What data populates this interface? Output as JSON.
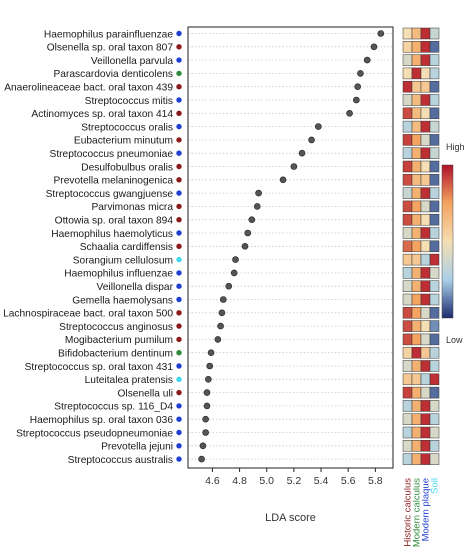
{
  "chart_data": {
    "type": "scatter",
    "orientation": "horizontal",
    "xlabel": "LDA score",
    "xlim": [
      4.42,
      5.93
    ],
    "xticks": [
      4.6,
      4.8,
      5.0,
      5.2,
      5.4,
      5.6,
      5.8
    ],
    "grid": "horizontal dotted",
    "point_color": "#555555",
    "taxa": [
      {
        "name": "Haemophilus parainfluenzae",
        "lda": 5.84,
        "group": "Modern plaque",
        "heat": [
          0.5,
          0.65,
          0.95,
          0.35
        ]
      },
      {
        "name": "Olsenella sp. oral taxon 807",
        "lda": 5.79,
        "group": "Historic calculus",
        "heat": [
          0.55,
          0.7,
          0.95,
          0.1
        ]
      },
      {
        "name": "Veillonella parvula",
        "lda": 5.74,
        "group": "Modern plaque",
        "heat": [
          0.4,
          0.7,
          0.95,
          0.3
        ]
      },
      {
        "name": "Parascardovia denticolens",
        "lda": 5.69,
        "group": "Modern calculus",
        "heat": [
          0.5,
          0.95,
          0.5,
          0.3
        ]
      },
      {
        "name": "Anaerolineaceae bact. oral taxon 439",
        "lda": 5.67,
        "group": "Historic calculus",
        "heat": [
          0.95,
          0.6,
          0.6,
          0.1
        ]
      },
      {
        "name": "Streptococcus mitis",
        "lda": 5.66,
        "group": "Modern plaque",
        "heat": [
          0.4,
          0.65,
          0.95,
          0.3
        ]
      },
      {
        "name": "Actinomyces sp. oral taxon 414",
        "lda": 5.61,
        "group": "Historic calculus",
        "heat": [
          0.9,
          0.65,
          0.5,
          0.1
        ]
      },
      {
        "name": "Streptococcus oralis",
        "lda": 5.38,
        "group": "Modern plaque",
        "heat": [
          0.3,
          0.65,
          0.95,
          0.35
        ]
      },
      {
        "name": "Eubacterium minutum",
        "lda": 5.33,
        "group": "Historic calculus",
        "heat": [
          0.92,
          0.75,
          0.4,
          0.1
        ]
      },
      {
        "name": "Streptococcus pneumoniae",
        "lda": 5.26,
        "group": "Modern plaque",
        "heat": [
          0.3,
          0.7,
          0.95,
          0.35
        ]
      },
      {
        "name": "Desulfobulbus oralis",
        "lda": 5.2,
        "group": "Historic calculus",
        "heat": [
          0.92,
          0.7,
          0.5,
          0.1
        ]
      },
      {
        "name": "Prevotella melaninogenica",
        "lda": 5.12,
        "group": "Historic calculus",
        "heat": [
          0.9,
          0.65,
          0.6,
          0.1
        ]
      },
      {
        "name": "Streptococcus gwangjuense",
        "lda": 4.94,
        "group": "Modern plaque",
        "heat": [
          0.35,
          0.7,
          0.95,
          0.3
        ]
      },
      {
        "name": "Parvimonas micra",
        "lda": 4.93,
        "group": "Historic calculus",
        "heat": [
          0.9,
          0.75,
          0.4,
          0.1
        ]
      },
      {
        "name": "Ottowia sp. oral taxon 894",
        "lda": 4.89,
        "group": "Historic calculus",
        "heat": [
          0.9,
          0.7,
          0.5,
          0.1
        ]
      },
      {
        "name": "Haemophilus haemolyticus",
        "lda": 4.86,
        "group": "Modern plaque",
        "heat": [
          0.4,
          0.7,
          0.95,
          0.3
        ]
      },
      {
        "name": "Schaalia cardiffensis",
        "lda": 4.84,
        "group": "Historic calculus",
        "heat": [
          0.85,
          0.75,
          0.5,
          0.1
        ]
      },
      {
        "name": "Sorangium cellulosum",
        "lda": 4.77,
        "group": "Soil",
        "heat": [
          0.6,
          0.6,
          0.3,
          0.95
        ]
      },
      {
        "name": "Haemophilus influenzae",
        "lda": 4.76,
        "group": "Modern plaque",
        "heat": [
          0.3,
          0.7,
          0.95,
          0.4
        ]
      },
      {
        "name": "Veillonella dispar",
        "lda": 4.72,
        "group": "Modern plaque",
        "heat": [
          0.4,
          0.7,
          0.95,
          0.3
        ]
      },
      {
        "name": "Gemella haemolysans",
        "lda": 4.68,
        "group": "Modern plaque",
        "heat": [
          0.4,
          0.75,
          0.95,
          0.3
        ]
      },
      {
        "name": "Lachnospiraceae bact. oral taxon 500",
        "lda": 4.67,
        "group": "Historic calculus",
        "heat": [
          0.9,
          0.75,
          0.4,
          0.1
        ]
      },
      {
        "name": "Streptococcus anginosus",
        "lda": 4.66,
        "group": "Historic calculus",
        "heat": [
          0.9,
          0.7,
          0.5,
          0.15
        ]
      },
      {
        "name": "Mogibacterium pumilum",
        "lda": 4.64,
        "group": "Historic calculus",
        "heat": [
          0.9,
          0.75,
          0.4,
          0.1
        ]
      },
      {
        "name": "Bifidobacterium dentinum",
        "lda": 4.59,
        "group": "Modern calculus",
        "heat": [
          0.55,
          0.95,
          0.6,
          0.3
        ]
      },
      {
        "name": "Streptococcus sp. oral taxon 431",
        "lda": 4.58,
        "group": "Modern plaque",
        "heat": [
          0.4,
          0.7,
          0.95,
          0.3
        ]
      },
      {
        "name": "Luteitalea pratensis",
        "lda": 4.57,
        "group": "Soil",
        "heat": [
          0.6,
          0.6,
          0.3,
          0.95
        ]
      },
      {
        "name": "Olsenella uli",
        "lda": 4.56,
        "group": "Historic calculus",
        "heat": [
          0.92,
          0.7,
          0.4,
          0.1
        ]
      },
      {
        "name": "Streptococcus sp. 116_D4",
        "lda": 4.56,
        "group": "Modern plaque",
        "heat": [
          0.3,
          0.7,
          0.95,
          0.4
        ]
      },
      {
        "name": "Haemophilus sp. oral taxon 036",
        "lda": 4.55,
        "group": "Modern plaque",
        "heat": [
          0.4,
          0.7,
          0.95,
          0.3
        ]
      },
      {
        "name": "Streptococcus pseudopneumoniae",
        "lda": 4.55,
        "group": "Modern plaque",
        "heat": [
          0.3,
          0.7,
          0.95,
          0.4
        ]
      },
      {
        "name": "Prevotella jejuni",
        "lda": 4.53,
        "group": "Modern plaque",
        "heat": [
          0.4,
          0.7,
          0.95,
          0.3
        ]
      },
      {
        "name": "Streptococcus australis",
        "lda": 4.52,
        "group": "Modern plaque",
        "heat": [
          0.3,
          0.7,
          0.95,
          0.4
        ]
      }
    ],
    "group_colors": {
      "Historic calculus": "#8b1a1a",
      "Modern calculus": "#2e8b3a",
      "Modern plaque": "#1f3fd1",
      "Soil": "#3fd9f0"
    },
    "heatmap_columns": [
      {
        "label": "Historic calculus",
        "color": "#8b1a1a"
      },
      {
        "label": "Modern calculus",
        "color": "#2e8b3a"
      },
      {
        "label": "Modern plaque",
        "color": "#1f3fd1"
      },
      {
        "label": "Soil",
        "color": "#3fd9f0"
      }
    ],
    "heatmap_colors": {
      "low": "#1c2a6e",
      "mid_low": "#aad0e8",
      "mid": "#f5deb3",
      "mid_high": "#f4a460",
      "high": "#b0122a"
    },
    "colorbar": {
      "high_label": "High",
      "low_label": "Low"
    }
  }
}
